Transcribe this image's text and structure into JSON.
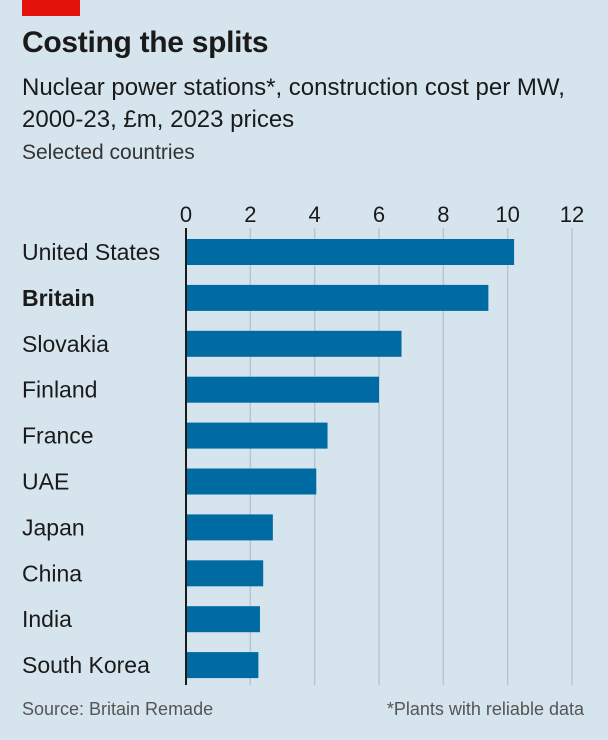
{
  "header": {
    "title": "Costing the splits",
    "subtitle": "Nuclear power stations*, construction cost per MW, 2000-23, £m, 2023 prices",
    "subsubtitle": "Selected countries"
  },
  "footer": {
    "source": "Source: Britain Remade",
    "footnote": "*Plants with reliable data"
  },
  "colors": {
    "background": "#d6e4ee",
    "bar": "#006ba2",
    "accent": "#e3120b",
    "grid": "#b7c6cf"
  },
  "chart_data": {
    "type": "bar",
    "orientation": "horizontal",
    "title": "Costing the splits",
    "subtitle": "Nuclear power stations*, construction cost per MW, 2000-23, £m, 2023 prices",
    "categories": [
      "United States",
      "Britain",
      "Slovakia",
      "Finland",
      "France",
      "UAE",
      "Japan",
      "China",
      "India",
      "South Korea"
    ],
    "highlighted": [
      "Britain"
    ],
    "values": [
      10.2,
      9.4,
      6.7,
      6.0,
      4.4,
      4.05,
      2.7,
      2.4,
      2.3,
      2.25
    ],
    "xlim": [
      0,
      12
    ],
    "xticks": [
      0,
      2,
      4,
      6,
      8,
      10,
      12
    ],
    "grid": true,
    "legend": "none"
  }
}
